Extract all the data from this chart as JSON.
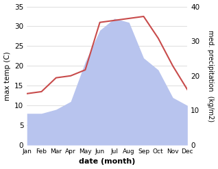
{
  "months": [
    "Jan",
    "Feb",
    "Mar",
    "Apr",
    "May",
    "Jun",
    "Jul",
    "Aug",
    "Sep",
    "Oct",
    "Nov",
    "Dec"
  ],
  "max_temp": [
    13.0,
    13.5,
    17.0,
    17.5,
    19.0,
    31.0,
    31.5,
    32.0,
    32.5,
    27.0,
    20.0,
    14.0
  ],
  "precipitation": [
    8,
    8,
    9,
    11,
    21,
    29,
    32,
    31,
    22,
    19,
    12,
    10
  ],
  "temp_color": "#c84b4b",
  "precip_color": "#b8c4ee",
  "left_ylim": [
    0,
    35
  ],
  "right_ylim": [
    0,
    40
  ],
  "left_yticks": [
    0,
    5,
    10,
    15,
    20,
    25,
    30,
    35
  ],
  "right_yticks": [
    0,
    10,
    20,
    30,
    40
  ],
  "xlabel": "date (month)",
  "ylabel_left": "max temp (C)",
  "ylabel_right": "med. precipitation  (kg/m2)",
  "bg_color": "#ffffff",
  "grid_color": "#d0d0d0",
  "figsize": [
    3.18,
    2.47
  ],
  "dpi": 100
}
